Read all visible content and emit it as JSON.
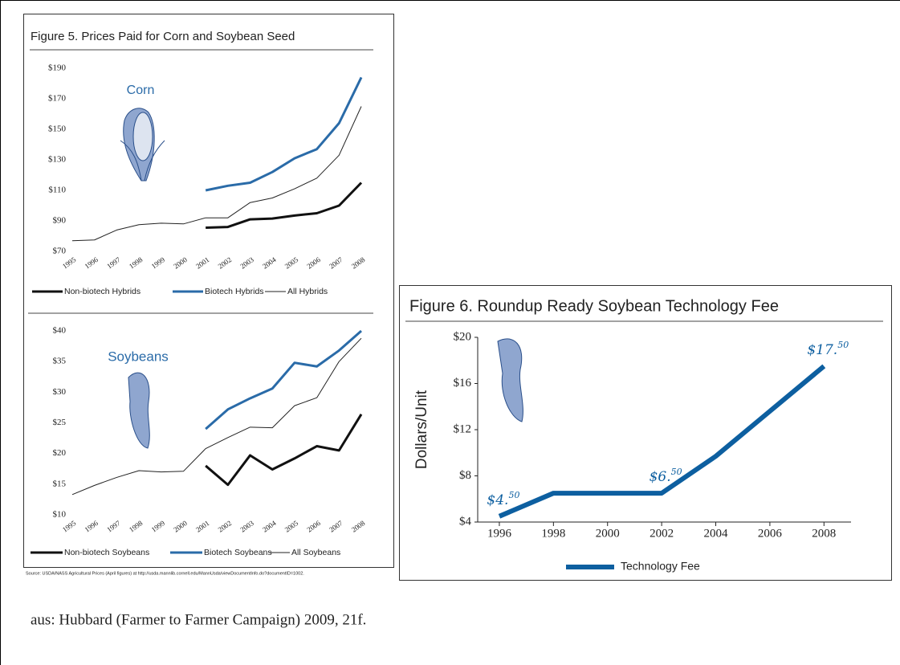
{
  "chart_data": [
    {
      "type": "line",
      "title": "Figure 5. Prices Paid for Corn and Soybean Seed",
      "annotation": "Corn",
      "categories": [
        "1995",
        "1996",
        "1997",
        "1998",
        "1999",
        "2000",
        "2001",
        "2002",
        "2003",
        "2004",
        "2005",
        "2006",
        "2007",
        "2008"
      ],
      "series": [
        {
          "name": "Non-biotech Hybrids",
          "color": "#111111",
          "values": [
            null,
            null,
            null,
            null,
            null,
            null,
            85.5,
            86,
            91,
            91.5,
            93.5,
            95,
            100,
            115
          ]
        },
        {
          "name": "Biotech Hybrids",
          "color": "#2a6ba8",
          "values": [
            null,
            null,
            null,
            null,
            null,
            null,
            110,
            113,
            115,
            122,
            131,
            137,
            154,
            184
          ]
        },
        {
          "name": "All Hybrids",
          "color": "#222222",
          "values": [
            77,
            77.5,
            84,
            87.5,
            88.5,
            88,
            92,
            92,
            102,
            105,
            111,
            118,
            133,
            165
          ]
        }
      ],
      "ylim": [
        70,
        190
      ],
      "yticks": [
        {
          "value": 70,
          "label": "$70"
        },
        {
          "value": 90,
          "label": "$90"
        },
        {
          "value": 110,
          "label": "$110"
        },
        {
          "value": 130,
          "label": "$130"
        },
        {
          "value": 150,
          "label": "$150"
        },
        {
          "value": 170,
          "label": "$170"
        },
        {
          "value": 190,
          "label": "$190"
        }
      ],
      "legend": "bottom"
    },
    {
      "type": "line",
      "annotation": "Soybeans",
      "source": "Source: USDA/NASS Agricultural Prices (April figures) at http://usda.mannlib.cornell.edu/MannUsda/viewDocumentInfo.do?documentID=1002.",
      "categories": [
        "1995",
        "1996",
        "1997",
        "1998",
        "1999",
        "2000",
        "2001",
        "2002",
        "2003",
        "2004",
        "2005",
        "2006",
        "2007",
        "2008"
      ],
      "series": [
        {
          "name": "Non-biotech Soybeans",
          "color": "#111111",
          "values": [
            null,
            null,
            null,
            null,
            null,
            null,
            18,
            14.9,
            19.7,
            17.4,
            19.2,
            21.2,
            20.5,
            26.4
          ]
        },
        {
          "name": "Biotech Soybeans",
          "color": "#2a6ba8",
          "values": [
            null,
            null,
            null,
            null,
            null,
            null,
            24,
            27.2,
            29,
            30.6,
            34.8,
            34.2,
            36.8,
            40
          ]
        },
        {
          "name": "All Soybeans",
          "color": "#222222",
          "values": [
            13.3,
            14.8,
            16.1,
            17.2,
            17,
            17.1,
            20.8,
            22.6,
            24.3,
            24.2,
            27.8,
            29.1,
            35,
            38.8
          ]
        }
      ],
      "ylim": [
        10,
        40
      ],
      "yticks": [
        {
          "value": 10,
          "label": "$10"
        },
        {
          "value": 15,
          "label": "$15"
        },
        {
          "value": 20,
          "label": "$20"
        },
        {
          "value": 25,
          "label": "$25"
        },
        {
          "value": 30,
          "label": "$30"
        },
        {
          "value": 35,
          "label": "$35"
        },
        {
          "value": 40,
          "label": "$40"
        }
      ],
      "legend": "bottom"
    },
    {
      "type": "line",
      "title": "Figure 6. Roundup Ready Soybean Technology Fee",
      "ylabel": "Dollars/Unit",
      "x": [
        1996,
        1998,
        2000,
        2002,
        2004,
        2006,
        2008
      ],
      "series": [
        {
          "name": "Technology Fee",
          "color": "#0d5fa0",
          "values": [
            4.5,
            6.5,
            6.5,
            6.5,
            9.7,
            13.6,
            17.5
          ],
          "value_labels": [
            "$4.50",
            null,
            null,
            "$6.50",
            null,
            null,
            "$17.50"
          ]
        }
      ],
      "xlim": [
        1995.2,
        2009
      ],
      "xticks": [
        1996,
        1998,
        2000,
        2002,
        2004,
        2006,
        2008
      ],
      "ylim": [
        4,
        20
      ],
      "yticks": [
        {
          "value": 4,
          "label": "$4"
        },
        {
          "value": 8,
          "label": "$8"
        },
        {
          "value": 12,
          "label": "$12"
        },
        {
          "value": 16,
          "label": "$16"
        },
        {
          "value": 20,
          "label": "$20"
        }
      ],
      "legend": "bottom"
    }
  ],
  "caption": "aus: Hubbard (Farmer to Farmer Campaign) 2009, 21f."
}
